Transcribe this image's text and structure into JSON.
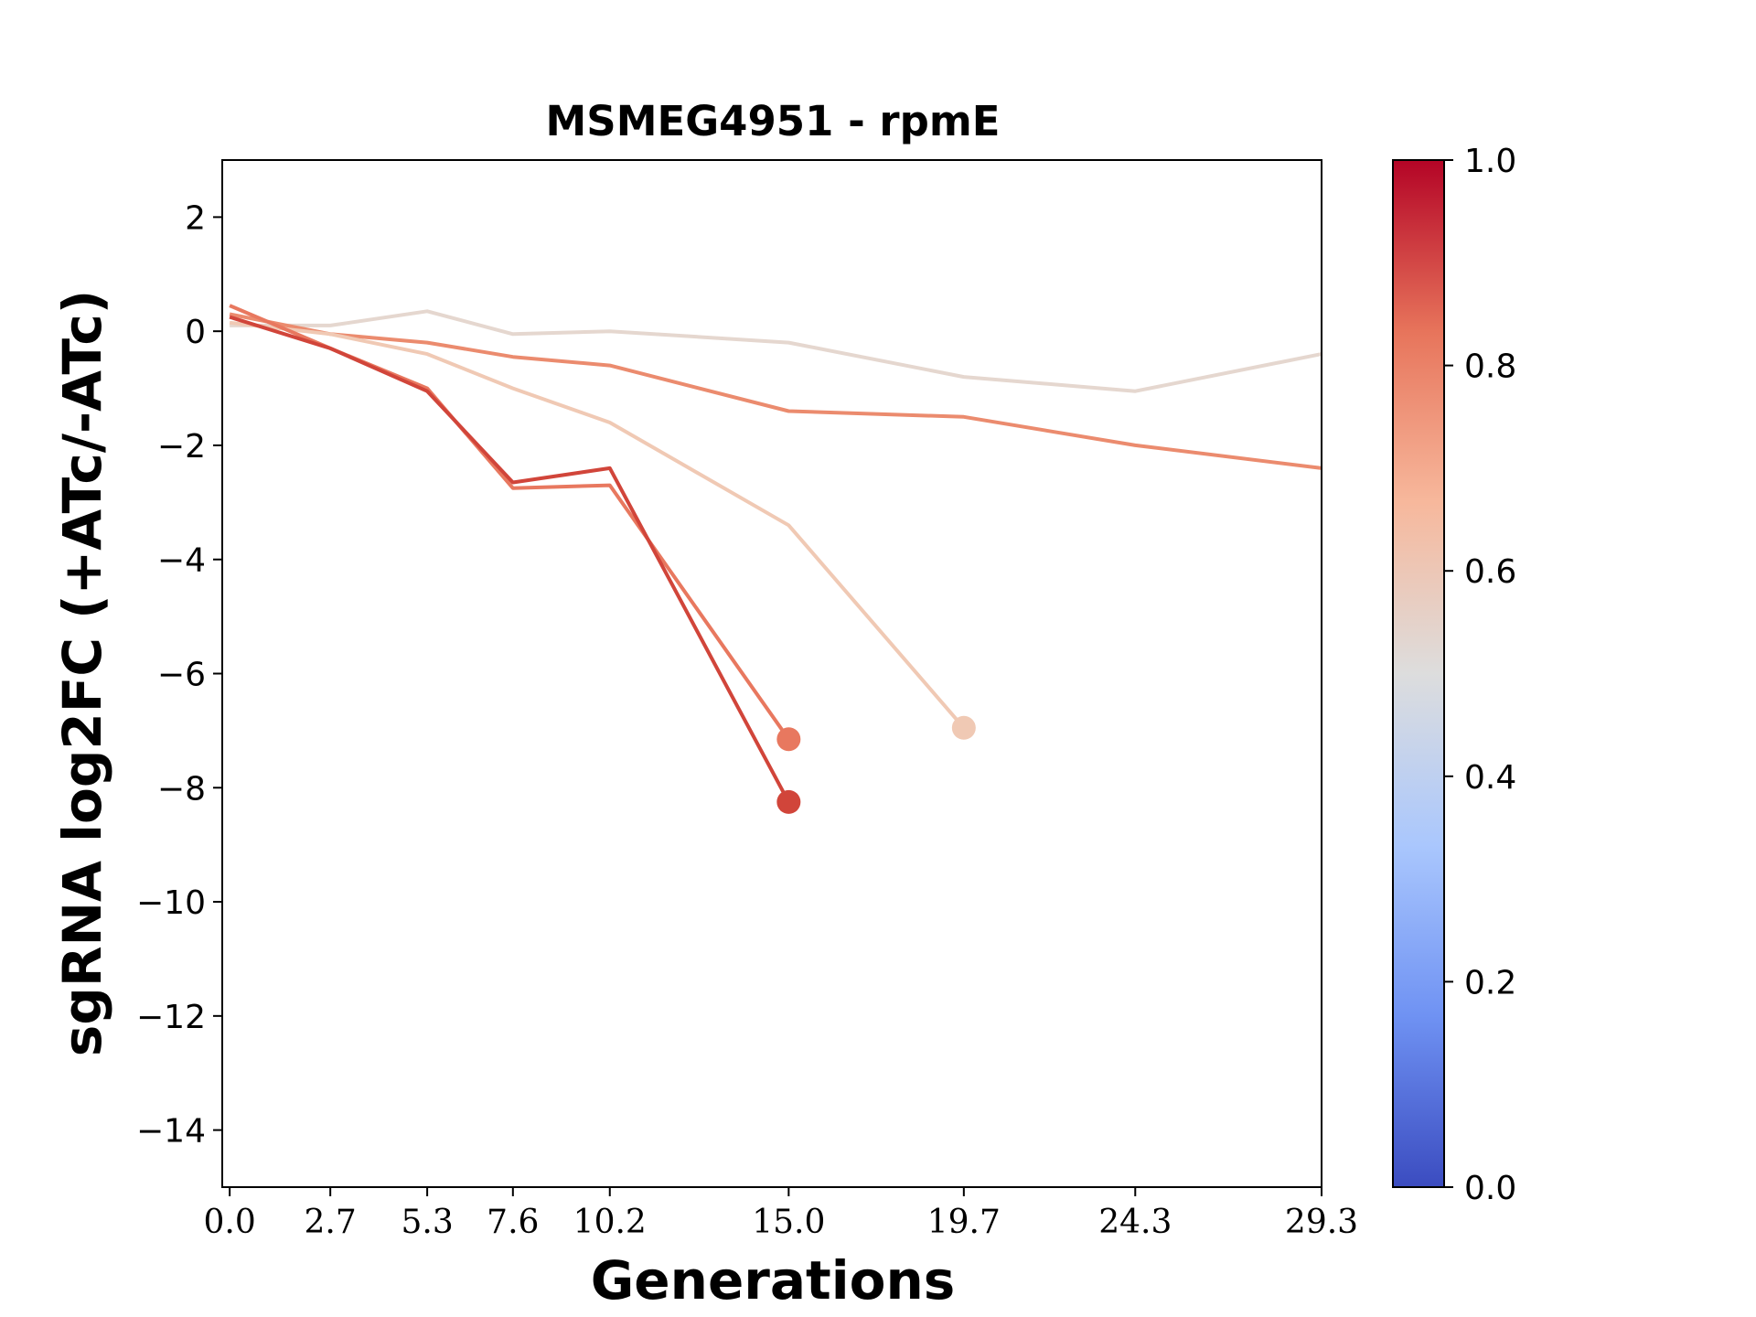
{
  "chart_data": {
    "type": "line",
    "title": "MSMEG4951 - rpmE",
    "xlabel": "Generations",
    "ylabel": "sgRNA log2FC (+ATc/-ATc)",
    "xlim": [
      -0.2,
      29.3
    ],
    "ylim": [
      -15,
      3
    ],
    "x_ticks": [
      "0.0",
      "2.7",
      "5.3",
      "7.6",
      "10.2",
      "15.0",
      "19.7",
      "24.3",
      "29.3"
    ],
    "x_tick_values": [
      0.0,
      2.7,
      5.3,
      7.6,
      10.2,
      15.0,
      19.7,
      24.3,
      29.3
    ],
    "y_ticks": [
      2,
      0,
      -2,
      -4,
      -6,
      -8,
      -10,
      -12,
      -14
    ],
    "y_tick_labels": [
      "2",
      "0",
      "−2",
      "−4",
      "−6",
      "−8",
      "−10",
      "−12",
      "−14"
    ],
    "grid": false,
    "colorbar": {
      "colormap": "coolwarm",
      "range": [
        0.0,
        1.0
      ],
      "ticks": [
        "0.0",
        "0.2",
        "0.4",
        "0.6",
        "0.8",
        "1.0"
      ],
      "stops": [
        "#3b4cc0",
        "#6f92f3",
        "#aac7fd",
        "#dddddd",
        "#f7b89c",
        "#e7745b",
        "#b40426"
      ]
    },
    "series": [
      {
        "color": "#e5d7cf",
        "x": [
          0.0,
          2.7,
          5.3,
          7.6,
          10.2,
          15.0,
          19.7,
          24.3,
          29.3
        ],
        "y": [
          0.1,
          0.1,
          0.35,
          -0.05,
          0.0,
          -0.2,
          -0.8,
          -1.05,
          -0.4
        ],
        "end_marker": false
      },
      {
        "color": "#eb8b6e",
        "x": [
          0.0,
          2.7,
          5.3,
          7.6,
          10.2,
          15.0,
          19.7,
          24.3,
          29.3
        ],
        "y": [
          0.3,
          -0.05,
          -0.2,
          -0.45,
          -0.6,
          -1.4,
          -1.5,
          -2.0,
          -2.4
        ],
        "end_marker": false
      },
      {
        "color": "#f0c9b4",
        "x": [
          0.0,
          2.7,
          5.3,
          7.6,
          10.2,
          15.0,
          19.7
        ],
        "y": [
          0.15,
          -0.05,
          -0.4,
          -1.0,
          -1.6,
          -3.4,
          -6.95
        ],
        "end_marker": true
      },
      {
        "color": "#e8785f",
        "x": [
          0.0,
          2.7,
          5.3,
          7.6,
          10.2,
          15.0
        ],
        "y": [
          0.45,
          -0.3,
          -1.0,
          -2.75,
          -2.7,
          -7.15
        ],
        "end_marker": true
      },
      {
        "color": "#d1453a",
        "x": [
          0.0,
          2.7,
          5.3,
          7.6,
          10.2,
          15.0
        ],
        "y": [
          0.25,
          -0.3,
          -1.05,
          -2.65,
          -2.4,
          -8.25
        ],
        "end_marker": true
      }
    ]
  }
}
